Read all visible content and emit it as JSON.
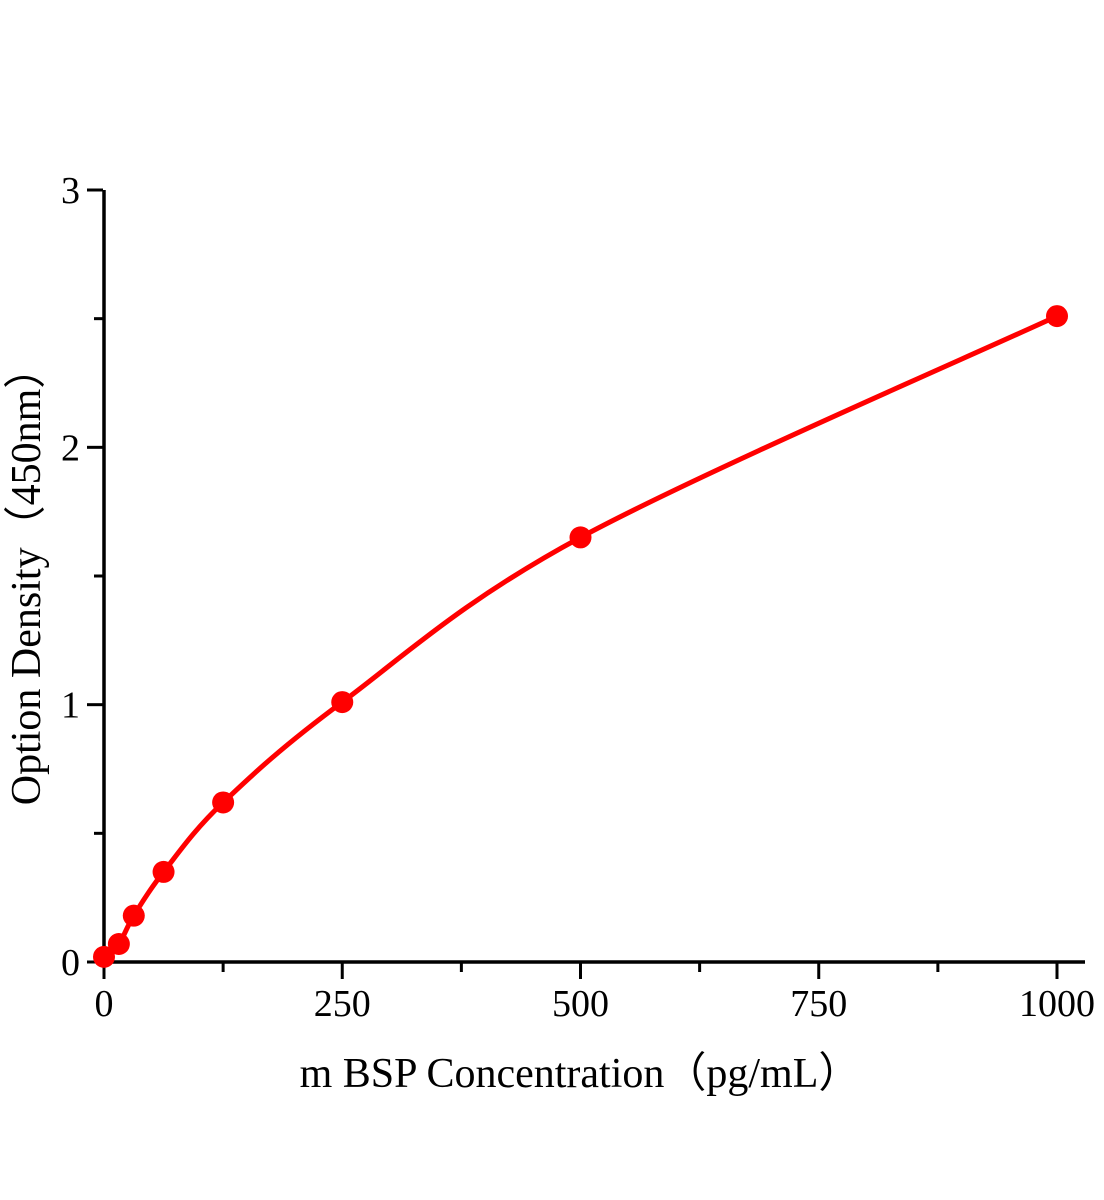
{
  "chart_data": {
    "type": "line",
    "title": "",
    "xlabel": "m BSP Concentration（pg/mL）",
    "ylabel": "Option Density（450nm）",
    "x": [
      0,
      15.6,
      31.25,
      62.5,
      125,
      250,
      500,
      1000
    ],
    "y": [
      0.02,
      0.07,
      0.18,
      0.35,
      0.62,
      1.01,
      1.65,
      2.51
    ],
    "xlim": [
      0,
      1000
    ],
    "ylim": [
      0,
      3
    ],
    "x_major_ticks": [
      0,
      250,
      500,
      750,
      1000
    ],
    "x_tick_labels": [
      "0",
      "250",
      "500",
      "750",
      "1000"
    ],
    "x_minor_ticks": [
      125,
      375,
      625,
      875
    ],
    "y_major_ticks": [
      0,
      1,
      2,
      3
    ],
    "y_tick_labels": [
      "0",
      "1",
      "2",
      "3"
    ],
    "y_minor_ticks": [
      0.5,
      1.5,
      2.5
    ],
    "grid": false,
    "legend": null,
    "colors": {
      "line": "#ff0000",
      "marker": "#ff0000",
      "axis": "#000000",
      "text": "#000000",
      "background": "#ffffff"
    }
  }
}
